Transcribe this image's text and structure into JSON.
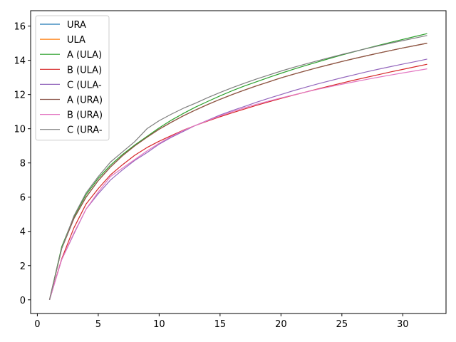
{
  "chart_data": {
    "type": "line",
    "title": "",
    "xlabel": "",
    "ylabel": "",
    "xlim": [
      -0.55,
      33.55
    ],
    "ylim": [
      -0.8,
      16.9
    ],
    "xticks": [
      0,
      5,
      10,
      15,
      20,
      25,
      30
    ],
    "yticks": [
      0,
      2,
      4,
      6,
      8,
      10,
      12,
      14,
      16
    ],
    "grid": false,
    "legend_position": "top-left",
    "x": [
      1,
      2,
      3,
      4,
      5,
      6,
      7,
      8,
      9,
      10,
      11,
      12,
      13,
      14,
      15,
      16,
      17,
      18,
      19,
      20,
      21,
      22,
      23,
      24,
      25,
      26,
      27,
      28,
      29,
      30,
      31,
      32
    ],
    "series": [
      {
        "name": "URA",
        "color": "#1f77b4",
        "values": [
          0,
          3.0,
          4.75,
          6.0,
          6.97,
          7.76,
          8.43,
          9.0,
          9.5,
          9.97,
          10.38,
          10.76,
          11.1,
          11.42,
          11.72,
          12.0,
          12.26,
          12.51,
          12.74,
          12.97,
          13.18,
          13.38,
          13.57,
          13.75,
          13.93,
          14.1,
          14.26,
          14.42,
          14.57,
          14.72,
          14.86,
          15.0
        ]
      },
      {
        "name": "ULA",
        "color": "#ff7f0e",
        "values": [
          0,
          3.0,
          4.75,
          6.0,
          6.97,
          7.76,
          8.43,
          9.0,
          9.5,
          9.97,
          10.38,
          10.76,
          11.1,
          11.42,
          11.72,
          12.0,
          12.26,
          12.51,
          12.74,
          12.97,
          13.18,
          13.38,
          13.57,
          13.75,
          13.93,
          14.1,
          14.26,
          14.42,
          14.57,
          14.72,
          14.86,
          15.0
        ]
      },
      {
        "name": "A (ULA)",
        "color": "#2ca02c",
        "values": [
          0,
          3.1,
          4.85,
          6.15,
          7.1,
          7.87,
          8.5,
          9.05,
          9.55,
          10.05,
          10.5,
          10.9,
          11.27,
          11.6,
          11.92,
          12.22,
          12.5,
          12.75,
          13.0,
          13.24,
          13.47,
          13.69,
          13.9,
          14.11,
          14.31,
          14.5,
          14.69,
          14.87,
          15.05,
          15.22,
          15.39,
          15.56
        ]
      },
      {
        "name": "B (ULA)",
        "color": "#d62728",
        "values": [
          0,
          2.4,
          4.2,
          5.6,
          6.5,
          7.3,
          7.9,
          8.45,
          8.9,
          9.27,
          9.6,
          9.92,
          10.2,
          10.45,
          10.7,
          10.93,
          11.15,
          11.37,
          11.57,
          11.77,
          11.96,
          12.14,
          12.32,
          12.5,
          12.67,
          12.84,
          13.0,
          13.16,
          13.32,
          13.47,
          13.62,
          13.77
        ]
      },
      {
        "name": "C (ULA-",
        "color": "#9467bd",
        "values": [
          0,
          2.35,
          3.85,
          5.3,
          6.2,
          7.0,
          7.6,
          8.15,
          8.6,
          9.1,
          9.5,
          9.85,
          10.2,
          10.5,
          10.8,
          11.06,
          11.3,
          11.55,
          11.78,
          12.0,
          12.22,
          12.42,
          12.62,
          12.8,
          12.98,
          13.15,
          13.32,
          13.48,
          13.63,
          13.78,
          13.92,
          14.07
        ]
      },
      {
        "name": "A (URA)",
        "color": "#8c564b",
        "values": [
          0,
          3.0,
          4.75,
          6.0,
          6.97,
          7.76,
          8.43,
          9.0,
          9.5,
          9.97,
          10.38,
          10.76,
          11.1,
          11.42,
          11.72,
          12.0,
          12.26,
          12.51,
          12.74,
          12.97,
          13.18,
          13.38,
          13.57,
          13.75,
          13.93,
          14.1,
          14.26,
          14.42,
          14.57,
          14.72,
          14.86,
          15.0
        ]
      },
      {
        "name": "B (URA)",
        "color": "#e377c2",
        "values": [
          0,
          2.35,
          3.9,
          5.3,
          6.3,
          7.2,
          7.7,
          8.2,
          8.7,
          9.15,
          9.55,
          9.9,
          10.2,
          10.48,
          10.75,
          11.0,
          11.22,
          11.43,
          11.62,
          11.8,
          11.97,
          12.14,
          12.3,
          12.45,
          12.6,
          12.74,
          12.88,
          13.01,
          13.14,
          13.26,
          13.38,
          13.5
        ]
      },
      {
        "name": "C (URA-",
        "color": "#7f7f7f",
        "values": [
          0,
          3.0,
          4.9,
          6.25,
          7.2,
          8.05,
          8.65,
          9.25,
          10.0,
          10.47,
          10.85,
          11.2,
          11.5,
          11.82,
          12.12,
          12.4,
          12.66,
          12.91,
          13.14,
          13.37,
          13.58,
          13.78,
          13.97,
          14.16,
          14.34,
          14.51,
          14.68,
          14.84,
          15.0,
          15.15,
          15.3,
          15.45
        ]
      }
    ]
  }
}
